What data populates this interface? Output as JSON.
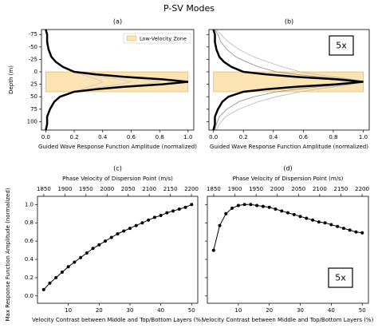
{
  "title": "P-SV Modes",
  "chart_data": [
    {
      "type": "line",
      "title": "(a)",
      "ylabel": "Depth (m)",
      "xlabel": "Guided Wave Response Function Amplitude (normalized)",
      "xlim": [
        -0.03,
        1.04
      ],
      "xticks": [
        {
          "value": 0,
          "label": "0.0"
        },
        0.2,
        0.4,
        0.6,
        0.8,
        {
          "value": 1,
          "label": "1.0"
        }
      ],
      "ylim": [
        -85,
        117
      ],
      "y_inverted": true,
      "yticks": [
        -75,
        -50,
        -25,
        0,
        25,
        50,
        75,
        100
      ],
      "show_ytick_labels": true,
      "zone": {
        "label": "Low-Velocity Zone",
        "color": "#fbe3b4",
        "edge": "#eaa64a",
        "xlim": [
          0,
          1
        ],
        "ylim": [
          0,
          40
        ]
      },
      "depth": [
        -85,
        -75,
        -60,
        -45,
        -30,
        -20,
        -10,
        0,
        5,
        10,
        15,
        20,
        25,
        30,
        35,
        40,
        50,
        60,
        75,
        90,
        105,
        117
      ],
      "series": [
        {
          "color": "#c8c8c8",
          "linewidth": 0.8,
          "values": [
            0,
            0.01,
            0.01,
            0.02,
            0.04,
            0.07,
            0.12,
            0.2,
            0.25,
            0.3,
            0.36,
            0.4,
            0.36,
            0.3,
            0.25,
            0.2,
            0.1,
            0.06,
            0.03,
            0.01,
            0.01,
            0
          ]
        },
        {
          "color": "#c8c8c8",
          "linewidth": 0.8,
          "values": [
            0,
            0.01,
            0.01,
            0.02,
            0.04,
            0.07,
            0.12,
            0.2,
            0.3,
            0.4,
            0.52,
            0.6,
            0.52,
            0.4,
            0.3,
            0.2,
            0.1,
            0.06,
            0.03,
            0.01,
            0.01,
            0
          ]
        },
        {
          "color": "#c8c8c8",
          "linewidth": 0.8,
          "values": [
            0,
            0.01,
            0.01,
            0.02,
            0.04,
            0.07,
            0.12,
            0.2,
            0.33,
            0.5,
            0.68,
            0.8,
            0.68,
            0.5,
            0.33,
            0.2,
            0.1,
            0.06,
            0.03,
            0.01,
            0.01,
            0
          ]
        },
        {
          "color": "#000000",
          "linewidth": 2.5,
          "values": [
            0,
            0.01,
            0.01,
            0.02,
            0.04,
            0.07,
            0.12,
            0.2,
            0.35,
            0.55,
            0.82,
            1.0,
            0.82,
            0.55,
            0.35,
            0.2,
            0.1,
            0.06,
            0.03,
            0.01,
            0.01,
            0
          ]
        }
      ]
    },
    {
      "type": "line",
      "title": "(b)",
      "xlabel": "Guided Wave Response Function Amplitude (normalized)",
      "annotation": "5x",
      "xlim": [
        -0.03,
        1.04
      ],
      "xticks": [
        {
          "value": 0,
          "label": "0.0"
        },
        0.2,
        0.4,
        0.6,
        0.8,
        {
          "value": 1,
          "label": "1.0"
        }
      ],
      "ylim": [
        -85,
        117
      ],
      "y_inverted": true,
      "yticks": [
        -75,
        -50,
        -25,
        0,
        25,
        50,
        75,
        100
      ],
      "show_ytick_labels": false,
      "zone": {
        "color": "#fbe3b4",
        "edge": "#eaa64a",
        "xlim": [
          0,
          1
        ],
        "ylim": [
          0,
          40
        ]
      },
      "depth": [
        -85,
        -75,
        -60,
        -45,
        -30,
        -20,
        -10,
        0,
        5,
        10,
        15,
        20,
        25,
        30,
        35,
        40,
        50,
        60,
        75,
        90,
        105,
        117
      ],
      "series": [
        {
          "color": "#b8b8b8",
          "linewidth": 0.8,
          "values": [
            0.02,
            0.05,
            0.1,
            0.17,
            0.27,
            0.36,
            0.46,
            0.58,
            0.68,
            0.8,
            0.93,
            1.0,
            0.93,
            0.8,
            0.68,
            0.58,
            0.42,
            0.3,
            0.17,
            0.08,
            0.04,
            0.02
          ]
        },
        {
          "color": "#888888",
          "linewidth": 0.8,
          "values": [
            0.01,
            0.03,
            0.05,
            0.09,
            0.15,
            0.22,
            0.3,
            0.42,
            0.55,
            0.7,
            0.9,
            1.0,
            0.9,
            0.7,
            0.55,
            0.42,
            0.27,
            0.17,
            0.09,
            0.04,
            0.02,
            0.01
          ]
        },
        {
          "color": "#000000",
          "linewidth": 2.5,
          "values": [
            0,
            0.01,
            0.01,
            0.02,
            0.04,
            0.07,
            0.12,
            0.2,
            0.35,
            0.55,
            0.82,
            1.0,
            0.82,
            0.55,
            0.35,
            0.2,
            0.1,
            0.06,
            0.03,
            0.01,
            0.01,
            0
          ]
        }
      ]
    },
    {
      "type": "line",
      "title": "(c)",
      "ylabel": "Max Response Function Amplitude (normalized)",
      "xlabel": "Velocity Contrast between Middle and Top/Bottom Layers (%)",
      "x2label": "Phase Velocity of Dispersion Point (m/s)",
      "xlim": [
        0,
        52
      ],
      "xticks": [
        10,
        20,
        30,
        40,
        50
      ],
      "x2lim": [
        1835,
        2215
      ],
      "x2ticks": [
        1850,
        1900,
        1950,
        2000,
        2050,
        2100,
        2150,
        2200
      ],
      "ylim": [
        -0.08,
        1.09
      ],
      "yticks": [
        {
          "value": 0,
          "label": "0.0"
        },
        0.2,
        0.4,
        0.6,
        0.8,
        {
          "value": 1,
          "label": "1.0"
        }
      ],
      "show_ytick_labels": true,
      "marker": true,
      "color": "#000000",
      "x": [
        2,
        4,
        6,
        8,
        10,
        12,
        14,
        16,
        18,
        20,
        22,
        24,
        26,
        28,
        30,
        32,
        34,
        36,
        38,
        40,
        42,
        44,
        46,
        48,
        50
      ],
      "values": [
        0.07,
        0.14,
        0.2,
        0.26,
        0.32,
        0.37,
        0.42,
        0.47,
        0.52,
        0.56,
        0.6,
        0.64,
        0.68,
        0.71,
        0.74,
        0.77,
        0.8,
        0.83,
        0.86,
        0.88,
        0.91,
        0.93,
        0.95,
        0.97,
        1.0
      ]
    },
    {
      "type": "line",
      "title": "(d)",
      "annotation": "5x",
      "xlabel": "Velocity Contrast between Middle and Top/Bottom Layers (%)",
      "x2label": "Phase Velocity of Dispersion Point (m/s)",
      "xlim": [
        0,
        52
      ],
      "xticks": [
        10,
        20,
        30,
        40,
        50
      ],
      "x2lim": [
        1835,
        2215
      ],
      "x2ticks": [
        1850,
        1900,
        1950,
        2000,
        2050,
        2100,
        2150,
        2200
      ],
      "ylim": [
        -0.08,
        1.09
      ],
      "yticks": [
        {
          "value": 0,
          "label": "0.0"
        },
        0.2,
        0.4,
        0.6,
        0.8,
        {
          "value": 1,
          "label": "1.0"
        }
      ],
      "show_ytick_labels": false,
      "marker": true,
      "color": "#000000",
      "x": [
        2,
        4,
        6,
        8,
        10,
        12,
        14,
        16,
        18,
        20,
        22,
        24,
        26,
        28,
        30,
        32,
        34,
        36,
        38,
        40,
        42,
        44,
        46,
        48,
        50
      ],
      "values": [
        0.5,
        0.77,
        0.9,
        0.96,
        0.99,
        1.0,
        1.0,
        0.99,
        0.98,
        0.97,
        0.95,
        0.93,
        0.91,
        0.89,
        0.87,
        0.85,
        0.83,
        0.81,
        0.8,
        0.78,
        0.76,
        0.74,
        0.72,
        0.7,
        0.69
      ]
    }
  ]
}
